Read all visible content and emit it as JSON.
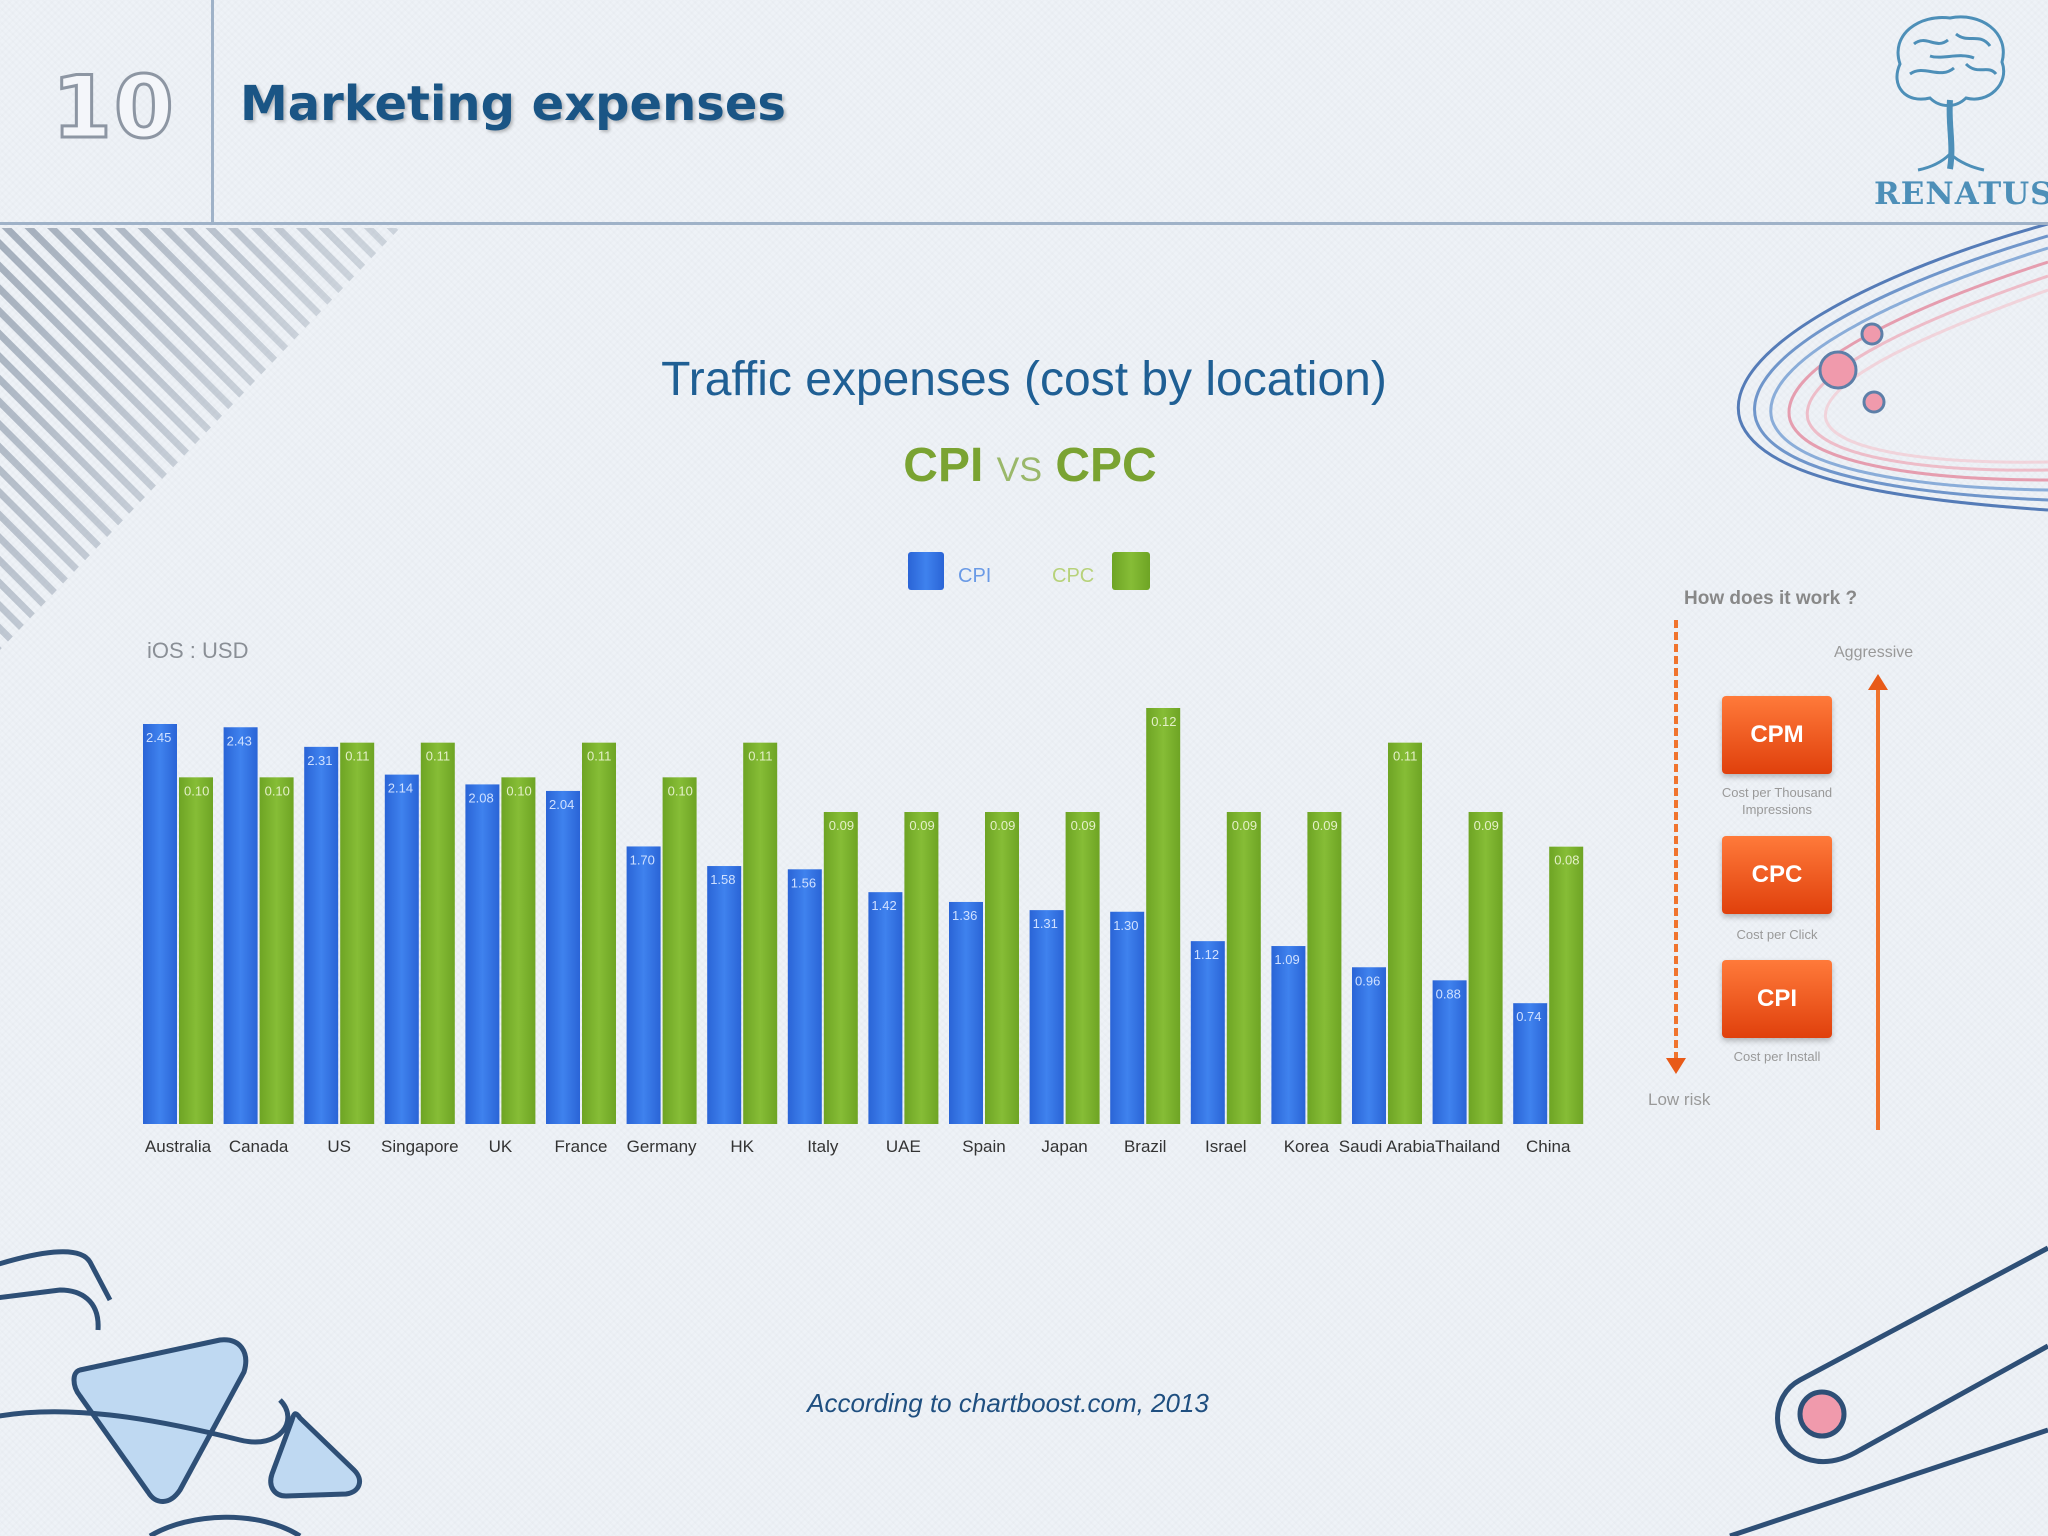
{
  "slide": {
    "number": "10",
    "title": "Marketing expenses",
    "brand": "RENATUS",
    "subtitle": "Traffic expenses (cost by location)",
    "source": "According to chartboost.com, 2013"
  },
  "chart_heading": {
    "left": "CPI",
    "vs": "VS",
    "right": "CPC"
  },
  "chart_data": {
    "type": "bar",
    "title": "CPI VS CPC",
    "unit_label": "iOS : USD",
    "categories": [
      "Australia",
      "Canada",
      "US",
      "Singapore",
      "UK",
      "France",
      "Germany",
      "HK",
      "Italy",
      "UAE",
      "Spain",
      "Japan",
      "Brazil",
      "Israel",
      "Korea",
      "Saudi Arabia",
      "Thailand",
      "China"
    ],
    "series": [
      {
        "name": "CPI",
        "color": "#2f6fe0",
        "values": [
          2.45,
          2.43,
          2.31,
          2.14,
          2.08,
          2.04,
          1.7,
          1.58,
          1.56,
          1.42,
          1.36,
          1.31,
          1.3,
          1.12,
          1.09,
          0.96,
          0.88,
          0.74
        ],
        "labels": [
          "2.45",
          "2.43",
          "2.31",
          "2.14",
          "2.08",
          "2.04",
          "1.70",
          "1.58",
          "1.56",
          "1.42",
          "1.36",
          "1.31",
          "1.30",
          "1.12",
          "1.09",
          "0.96",
          "0.88",
          "0.74"
        ]
      },
      {
        "name": "CPC",
        "color": "#7ab32e",
        "values": [
          0.1,
          0.1,
          0.11,
          0.11,
          0.1,
          0.11,
          0.1,
          0.11,
          0.09,
          0.09,
          0.09,
          0.09,
          0.12,
          0.09,
          0.09,
          0.11,
          0.09,
          0.08
        ],
        "labels": [
          "0.10",
          "0.10",
          "0.11",
          "0.11",
          "0.10",
          "0.11",
          "0.10",
          "0.11",
          "0.09",
          "0.09",
          "0.09",
          "0.09",
          "0.12",
          "0.09",
          "0.09",
          "0.11",
          "0.09",
          "0.08"
        ]
      }
    ],
    "legend_position": "top-center",
    "grid": false
  },
  "how_it_works": {
    "title": "How does it work ?",
    "top_label": "Aggressive",
    "bottom_label": "Low risk",
    "models": [
      {
        "name": "CPM",
        "caption": "Cost per Thousand Impressions"
      },
      {
        "name": "CPC",
        "caption": "Cost per Click"
      },
      {
        "name": "CPI",
        "caption": "Cost per Install"
      }
    ]
  },
  "colors": {
    "title": "#1a5585",
    "accent_orange": "#e85a18",
    "cpi_blue": "#2f6fe0",
    "cpc_green": "#7ab32e"
  }
}
